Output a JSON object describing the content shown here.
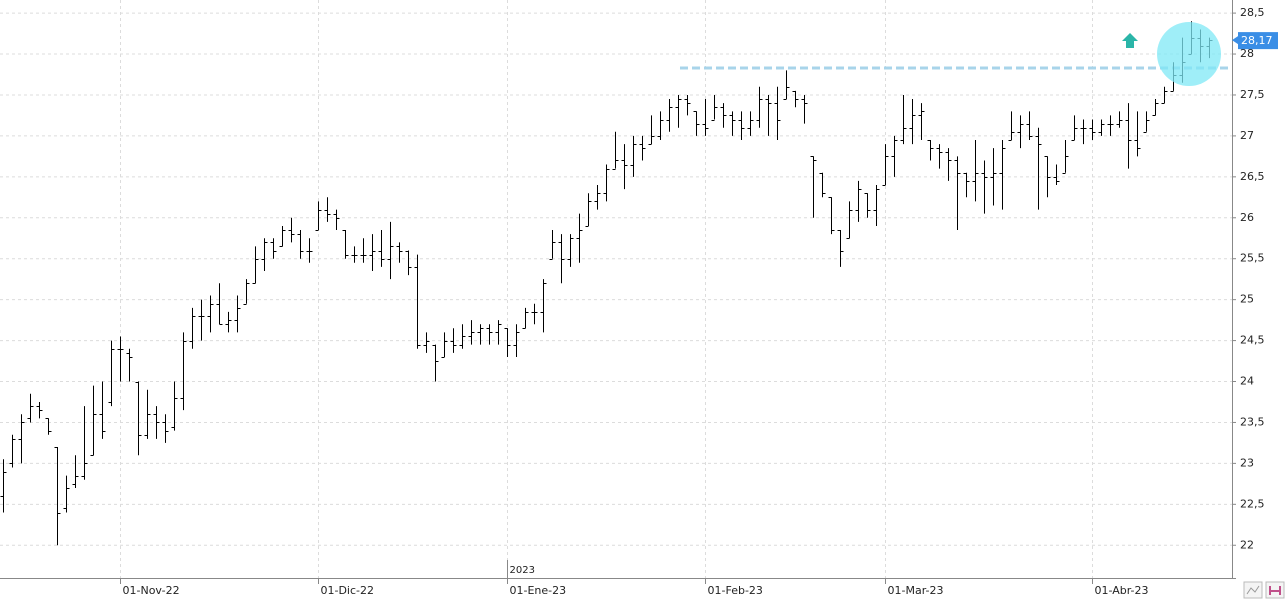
{
  "chart_data": {
    "type": "ohlc",
    "color": "#000000",
    "grid": true,
    "ylim": [
      21.6,
      28.66
    ],
    "yticks": [
      22,
      {
        "value": 22.5,
        "label": "22,5"
      },
      23,
      {
        "value": 23.5,
        "label": "23,5"
      },
      24,
      {
        "value": 24.5,
        "label": "24,5"
      },
      25,
      {
        "value": 25.5,
        "label": "25,5"
      },
      26,
      {
        "value": 26.5,
        "label": "26,5"
      },
      27,
      {
        "value": 27.5,
        "label": "27,5"
      },
      28,
      {
        "value": 28.5,
        "label": "28,5"
      }
    ],
    "categories": [
      null,
      null,
      null,
      null,
      null,
      null,
      null,
      null,
      null,
      null,
      null,
      null,
      null,
      "01-Nov-22",
      null,
      null,
      null,
      null,
      null,
      null,
      null,
      null,
      null,
      null,
      null,
      null,
      null,
      null,
      null,
      null,
      null,
      null,
      null,
      null,
      null,
      "01-Dic-22",
      null,
      null,
      null,
      null,
      null,
      null,
      null,
      null,
      null,
      null,
      null,
      null,
      null,
      null,
      null,
      null,
      null,
      null,
      null,
      null,
      "01-Ene-23",
      null,
      null,
      null,
      null,
      null,
      null,
      null,
      null,
      null,
      null,
      null,
      null,
      null,
      null,
      null,
      null,
      null,
      null,
      null,
      null,
      null,
      "01-Feb-23",
      null,
      null,
      null,
      null,
      null,
      null,
      null,
      null,
      null,
      null,
      null,
      null,
      null,
      null,
      null,
      null,
      null,
      null,
      null,
      "01-Mar-23",
      null,
      null,
      null,
      null,
      null,
      null,
      null,
      null,
      null,
      null,
      null,
      null,
      null,
      null,
      null,
      null,
      null,
      null,
      null,
      null,
      null,
      null,
      "01-Abr-23",
      null,
      null,
      null,
      null,
      null,
      null,
      null,
      null,
      null,
      null,
      null,
      null,
      null
    ],
    "year_label": "2023",
    "open": [
      22.6,
      23.0,
      23.3,
      23.55,
      23.7,
      23.55,
      23.2,
      22.45,
      22.75,
      22.85,
      23.1,
      23.6,
      23.75,
      24.4,
      24.35,
      24.0,
      23.35,
      23.6,
      23.5,
      23.45,
      23.8,
      24.5,
      24.8,
      24.8,
      24.95,
      24.7,
      24.75,
      24.95,
      25.2,
      25.5,
      25.7,
      25.65,
      25.85,
      25.8,
      25.6,
      25.85,
      26.1,
      26.05,
      25.85,
      25.55,
      25.55,
      25.55,
      25.6,
      25.5,
      25.65,
      25.6,
      25.4,
      24.45,
      24.45,
      24.3,
      24.5,
      24.45,
      24.55,
      24.6,
      24.65,
      24.6,
      24.65,
      24.45,
      24.65,
      24.85,
      24.85,
      25.5,
      25.7,
      25.5,
      25.75,
      25.9,
      26.2,
      26.3,
      26.6,
      26.7,
      26.65,
      26.9,
      26.9,
      27.0,
      27.2,
      27.35,
      27.45,
      27.3,
      27.15,
      27.2,
      27.35,
      27.25,
      27.2,
      27.1,
      27.2,
      27.45,
      27.4,
      27.45,
      27.55,
      27.45,
      26.75,
      26.55,
      26.25,
      25.85,
      25.75,
      26.1,
      26.3,
      26.1,
      26.4,
      26.75,
      26.95,
      27.1,
      27.25,
      26.95,
      26.85,
      26.8,
      26.7,
      26.55,
      26.45,
      26.55,
      26.5,
      26.55,
      26.95,
      27.05,
      27.15,
      27.0,
      26.75,
      26.5,
      26.55,
      26.95,
      27.1,
      27.1,
      27.05,
      27.15,
      27.15,
      27.2,
      26.95,
      27.05,
      27.25,
      27.4,
      27.55,
      27.75,
      28.0,
      28.2,
      28.1
    ],
    "high": [
      23.05,
      23.35,
      23.6,
      23.85,
      23.75,
      23.55,
      23.2,
      22.85,
      23.1,
      23.7,
      23.95,
      24.0,
      24.5,
      24.55,
      24.4,
      24.0,
      23.9,
      23.7,
      23.6,
      24.0,
      24.6,
      24.9,
      25.0,
      25.05,
      25.2,
      24.85,
      25.05,
      25.25,
      25.65,
      25.75,
      25.75,
      25.9,
      26.0,
      25.85,
      25.75,
      26.2,
      26.25,
      26.1,
      25.85,
      25.65,
      25.75,
      25.8,
      25.85,
      25.95,
      25.7,
      25.6,
      25.55,
      24.6,
      24.45,
      24.6,
      24.65,
      24.7,
      24.75,
      24.7,
      24.7,
      24.75,
      24.65,
      24.7,
      24.9,
      24.95,
      25.25,
      25.85,
      25.8,
      25.8,
      26.05,
      26.3,
      26.4,
      26.65,
      27.05,
      26.9,
      27.0,
      27.0,
      27.25,
      27.3,
      27.45,
      27.5,
      27.5,
      27.3,
      27.45,
      27.5,
      27.4,
      27.3,
      27.3,
      27.3,
      27.6,
      27.5,
      27.6,
      27.8,
      27.55,
      27.5,
      26.75,
      26.55,
      26.25,
      25.85,
      26.2,
      26.45,
      26.3,
      26.4,
      26.9,
      27.0,
      27.5,
      27.45,
      27.4,
      26.95,
      26.9,
      26.85,
      26.75,
      26.55,
      26.95,
      26.7,
      26.85,
      26.95,
      27.3,
      27.25,
      27.3,
      27.1,
      26.75,
      26.65,
      26.95,
      27.25,
      27.2,
      27.2,
      27.2,
      27.25,
      27.3,
      27.4,
      27.3,
      27.3,
      27.45,
      27.6,
      27.9,
      28.2,
      28.4,
      28.3,
      28.2
    ],
    "low": [
      22.4,
      22.95,
      23.0,
      23.5,
      23.55,
      23.35,
      22.0,
      22.4,
      22.7,
      22.8,
      23.1,
      23.3,
      23.7,
      24.0,
      24.0,
      23.1,
      23.3,
      23.3,
      23.25,
      23.4,
      23.65,
      24.4,
      24.5,
      24.6,
      24.7,
      24.6,
      24.6,
      24.95,
      25.2,
      25.35,
      25.5,
      25.65,
      25.7,
      25.5,
      25.45,
      25.85,
      25.95,
      25.85,
      25.5,
      25.45,
      25.45,
      25.35,
      25.4,
      25.25,
      25.45,
      25.3,
      24.4,
      24.35,
      24.0,
      24.3,
      24.35,
      24.4,
      24.45,
      24.45,
      24.45,
      24.45,
      24.3,
      24.3,
      24.65,
      24.7,
      24.6,
      25.5,
      25.2,
      25.4,
      25.45,
      25.9,
      26.1,
      26.2,
      26.6,
      26.35,
      26.5,
      26.7,
      26.9,
      26.95,
      27.05,
      27.1,
      27.25,
      27.0,
      27.0,
      27.2,
      27.1,
      27.0,
      26.95,
      27.0,
      27.1,
      27.0,
      26.95,
      27.45,
      27.35,
      27.15,
      26.0,
      26.25,
      25.8,
      25.4,
      25.75,
      25.95,
      26.0,
      25.9,
      26.4,
      26.5,
      26.9,
      26.9,
      26.95,
      26.7,
      26.6,
      26.45,
      25.85,
      26.25,
      26.2,
      26.05,
      26.15,
      26.1,
      26.95,
      26.85,
      26.95,
      26.1,
      26.25,
      26.4,
      26.55,
      26.95,
      26.9,
      26.95,
      27.0,
      27.0,
      27.1,
      26.6,
      26.75,
      27.05,
      27.25,
      27.4,
      27.55,
      27.65,
      28.0,
      27.9,
      27.95
    ],
    "close": [
      22.9,
      23.3,
      23.5,
      23.7,
      23.65,
      23.4,
      22.4,
      22.7,
      22.85,
      23.0,
      23.6,
      23.4,
      24.4,
      24.4,
      24.3,
      23.35,
      23.6,
      23.5,
      23.4,
      23.8,
      24.5,
      24.8,
      24.8,
      24.95,
      24.7,
      24.75,
      24.9,
      25.2,
      25.5,
      25.7,
      25.6,
      25.85,
      25.8,
      25.6,
      25.6,
      26.1,
      26.05,
      26.0,
      25.55,
      25.55,
      25.55,
      25.6,
      25.5,
      25.65,
      25.6,
      25.4,
      24.45,
      24.5,
      24.25,
      24.5,
      24.45,
      24.55,
      24.6,
      24.65,
      24.6,
      24.7,
      24.45,
      24.6,
      24.85,
      24.85,
      25.2,
      25.7,
      25.5,
      25.75,
      25.85,
      26.2,
      26.3,
      26.6,
      26.7,
      26.65,
      26.9,
      26.85,
      27.0,
      27.2,
      27.35,
      27.45,
      27.4,
      27.15,
      27.1,
      27.35,
      27.25,
      27.2,
      27.1,
      27.2,
      27.45,
      27.4,
      27.2,
      27.6,
      27.45,
      27.4,
      26.7,
      26.3,
      25.85,
      25.6,
      26.1,
      26.35,
      26.1,
      26.35,
      26.75,
      26.95,
      27.1,
      27.25,
      27.3,
      26.85,
      26.8,
      26.7,
      26.55,
      26.45,
      26.55,
      26.5,
      26.55,
      26.85,
      27.05,
      27.15,
      27.0,
      26.9,
      26.5,
      26.45,
      26.75,
      27.1,
      27.1,
      27.05,
      27.15,
      27.15,
      27.2,
      26.95,
      26.85,
      27.2,
      27.4,
      27.55,
      27.75,
      27.9,
      28.2,
      28.1,
      28.17
    ],
    "last_price": {
      "value": 28.17,
      "label": "28,17",
      "color": "#3a8ee6"
    },
    "resistance": {
      "value": 27.83,
      "color": "#a8d4ea"
    }
  }
}
